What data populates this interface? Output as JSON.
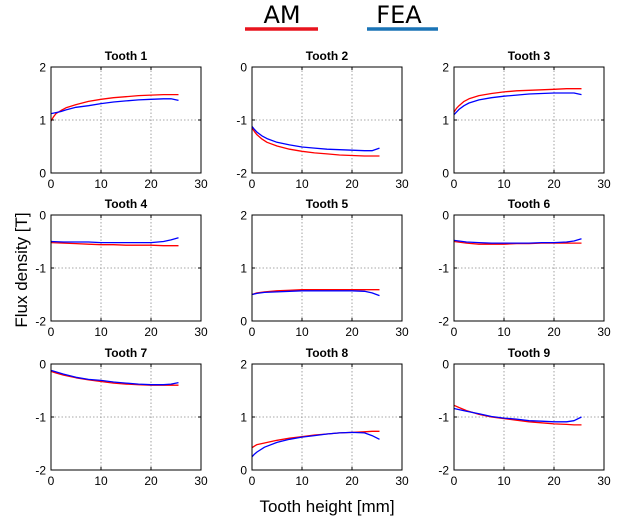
{
  "figure": {
    "ylabel": "Flux density [T]",
    "xlabel": "Tooth height [mm]"
  },
  "legend": [
    {
      "name": "AM",
      "color": "#e8141e"
    },
    {
      "name": "FEA",
      "color": "#1a74b6"
    }
  ],
  "chart_data": [
    {
      "type": "line",
      "title": "Tooth 1",
      "xlim": [
        0,
        30
      ],
      "ylim": [
        0,
        2
      ],
      "xticks": [
        "0",
        "10",
        "20",
        "30"
      ],
      "yticks": [
        "0",
        "1",
        "2"
      ],
      "x": [
        0,
        0.5,
        1,
        2,
        3,
        5,
        7.5,
        10,
        12.5,
        15,
        17.5,
        20,
        22.5,
        24,
        25.5
      ],
      "series": [
        {
          "name": "AM",
          "color": "#ff0000",
          "y": [
            0.98,
            1.06,
            1.12,
            1.18,
            1.23,
            1.29,
            1.35,
            1.39,
            1.42,
            1.44,
            1.46,
            1.47,
            1.48,
            1.48,
            1.48
          ]
        },
        {
          "name": "FEA",
          "color": "#0000ff",
          "y": [
            1.12,
            1.13,
            1.14,
            1.16,
            1.19,
            1.24,
            1.27,
            1.31,
            1.34,
            1.36,
            1.38,
            1.39,
            1.4,
            1.4,
            1.37
          ]
        }
      ]
    },
    {
      "type": "line",
      "title": "Tooth 2",
      "xlim": [
        0,
        30
      ],
      "ylim": [
        -2,
        0
      ],
      "xticks": [
        "0",
        "10",
        "20",
        "30"
      ],
      "yticks": [
        "-2",
        "-1",
        "0"
      ],
      "x": [
        0,
        0.5,
        1,
        2,
        3,
        5,
        7.5,
        10,
        12.5,
        15,
        17.5,
        20,
        22.5,
        24,
        25.5
      ],
      "series": [
        {
          "name": "AM",
          "color": "#ff0000",
          "y": [
            -1.15,
            -1.22,
            -1.28,
            -1.36,
            -1.42,
            -1.49,
            -1.55,
            -1.59,
            -1.62,
            -1.64,
            -1.66,
            -1.67,
            -1.68,
            -1.68,
            -1.68
          ]
        },
        {
          "name": "FEA",
          "color": "#0000ff",
          "y": [
            -1.12,
            -1.18,
            -1.23,
            -1.3,
            -1.35,
            -1.42,
            -1.47,
            -1.51,
            -1.53,
            -1.55,
            -1.56,
            -1.57,
            -1.58,
            -1.58,
            -1.53
          ]
        }
      ]
    },
    {
      "type": "line",
      "title": "Tooth 3",
      "xlim": [
        0,
        30
      ],
      "ylim": [
        0,
        2
      ],
      "xticks": [
        "0",
        "10",
        "20",
        "30"
      ],
      "yticks": [
        "0",
        "1",
        "2"
      ],
      "x": [
        0,
        0.5,
        1,
        2,
        3,
        5,
        7.5,
        10,
        12.5,
        15,
        17.5,
        20,
        22.5,
        24,
        25.5
      ],
      "series": [
        {
          "name": "AM",
          "color": "#ff0000",
          "y": [
            1.15,
            1.22,
            1.27,
            1.35,
            1.4,
            1.46,
            1.5,
            1.53,
            1.55,
            1.56,
            1.57,
            1.58,
            1.59,
            1.59,
            1.59
          ]
        },
        {
          "name": "FEA",
          "color": "#0000ff",
          "y": [
            1.1,
            1.15,
            1.2,
            1.27,
            1.32,
            1.38,
            1.42,
            1.45,
            1.47,
            1.49,
            1.5,
            1.51,
            1.51,
            1.51,
            1.48
          ]
        }
      ]
    },
    {
      "type": "line",
      "title": "Tooth 4",
      "xlim": [
        0,
        30
      ],
      "ylim": [
        -2,
        0
      ],
      "xticks": [
        "0",
        "10",
        "20",
        "30"
      ],
      "yticks": [
        "-2",
        "-1",
        "0"
      ],
      "x": [
        0,
        2.5,
        5,
        7.5,
        10,
        12.5,
        15,
        17.5,
        20,
        22.5,
        24,
        25.5
      ],
      "series": [
        {
          "name": "AM",
          "color": "#ff0000",
          "y": [
            -0.52,
            -0.53,
            -0.54,
            -0.55,
            -0.56,
            -0.56,
            -0.57,
            -0.57,
            -0.57,
            -0.58,
            -0.58,
            -0.58
          ]
        },
        {
          "name": "FEA",
          "color": "#0000ff",
          "y": [
            -0.5,
            -0.51,
            -0.51,
            -0.51,
            -0.52,
            -0.52,
            -0.52,
            -0.52,
            -0.52,
            -0.5,
            -0.47,
            -0.43
          ]
        }
      ]
    },
    {
      "type": "line",
      "title": "Tooth 5",
      "xlim": [
        0,
        30
      ],
      "ylim": [
        0,
        2
      ],
      "xticks": [
        "0",
        "10",
        "20",
        "30"
      ],
      "yticks": [
        "0",
        "1",
        "2"
      ],
      "x": [
        0,
        1,
        2.5,
        5,
        7.5,
        10,
        12.5,
        15,
        17.5,
        20,
        22.5,
        24,
        25.5
      ],
      "series": [
        {
          "name": "AM",
          "color": "#ff0000",
          "y": [
            0.5,
            0.53,
            0.55,
            0.57,
            0.58,
            0.59,
            0.59,
            0.59,
            0.59,
            0.59,
            0.59,
            0.59,
            0.59
          ]
        },
        {
          "name": "FEA",
          "color": "#0000ff",
          "y": [
            0.5,
            0.52,
            0.54,
            0.55,
            0.56,
            0.57,
            0.57,
            0.57,
            0.57,
            0.57,
            0.56,
            0.53,
            0.48
          ]
        }
      ]
    },
    {
      "type": "line",
      "title": "Tooth 6",
      "xlim": [
        0,
        30
      ],
      "ylim": [
        -2,
        0
      ],
      "xticks": [
        "0",
        "10",
        "20",
        "30"
      ],
      "yticks": [
        "-2",
        "-1",
        "0"
      ],
      "x": [
        0,
        2.5,
        5,
        7.5,
        10,
        12.5,
        15,
        17.5,
        20,
        22.5,
        24,
        25.5
      ],
      "series": [
        {
          "name": "AM",
          "color": "#ff0000",
          "y": [
            -0.5,
            -0.53,
            -0.55,
            -0.55,
            -0.55,
            -0.54,
            -0.54,
            -0.53,
            -0.53,
            -0.53,
            -0.53,
            -0.53
          ]
        },
        {
          "name": "FEA",
          "color": "#0000ff",
          "y": [
            -0.48,
            -0.51,
            -0.52,
            -0.53,
            -0.53,
            -0.53,
            -0.53,
            -0.52,
            -0.52,
            -0.51,
            -0.49,
            -0.45
          ]
        }
      ]
    },
    {
      "type": "line",
      "title": "Tooth 7",
      "xlim": [
        0,
        30
      ],
      "ylim": [
        -2,
        0
      ],
      "xticks": [
        "0",
        "10",
        "20",
        "30"
      ],
      "yticks": [
        "-2",
        "-1",
        "0"
      ],
      "x": [
        0,
        1,
        2.5,
        5,
        7.5,
        10,
        12.5,
        15,
        17.5,
        20,
        22.5,
        24,
        25.5
      ],
      "series": [
        {
          "name": "AM",
          "color": "#ff0000",
          "y": [
            -0.14,
            -0.17,
            -0.21,
            -0.26,
            -0.3,
            -0.33,
            -0.36,
            -0.38,
            -0.39,
            -0.4,
            -0.4,
            -0.4,
            -0.4
          ]
        },
        {
          "name": "FEA",
          "color": "#0000ff",
          "y": [
            -0.12,
            -0.15,
            -0.19,
            -0.25,
            -0.29,
            -0.31,
            -0.34,
            -0.36,
            -0.38,
            -0.39,
            -0.39,
            -0.38,
            -0.35
          ]
        }
      ]
    },
    {
      "type": "line",
      "title": "Tooth 8",
      "xlim": [
        0,
        30
      ],
      "ylim": [
        0,
        2
      ],
      "xticks": [
        "0",
        "10",
        "20",
        "30"
      ],
      "yticks": [
        "0",
        "1",
        "2"
      ],
      "x": [
        0,
        0.5,
        1,
        2.5,
        5,
        7.5,
        10,
        12.5,
        15,
        17.5,
        20,
        22.5,
        24,
        25.5
      ],
      "series": [
        {
          "name": "AM",
          "color": "#ff0000",
          "y": [
            0.42,
            0.45,
            0.48,
            0.51,
            0.56,
            0.6,
            0.63,
            0.66,
            0.68,
            0.7,
            0.71,
            0.72,
            0.73,
            0.73
          ]
        },
        {
          "name": "FEA",
          "color": "#0000ff",
          "y": [
            0.25,
            0.3,
            0.34,
            0.43,
            0.52,
            0.58,
            0.62,
            0.65,
            0.68,
            0.7,
            0.71,
            0.7,
            0.65,
            0.58
          ]
        }
      ]
    },
    {
      "type": "line",
      "title": "Tooth 9",
      "xlim": [
        0,
        30
      ],
      "ylim": [
        -2,
        0
      ],
      "xticks": [
        "0",
        "10",
        "20",
        "30"
      ],
      "yticks": [
        "-2",
        "-1",
        "0"
      ],
      "x": [
        0,
        1,
        2.5,
        5,
        7.5,
        10,
        12.5,
        15,
        17.5,
        20,
        22.5,
        24,
        25.5
      ],
      "series": [
        {
          "name": "AM",
          "color": "#ff0000",
          "y": [
            -0.78,
            -0.82,
            -0.88,
            -0.95,
            -1.0,
            -1.03,
            -1.06,
            -1.09,
            -1.11,
            -1.13,
            -1.14,
            -1.15,
            -1.15
          ]
        },
        {
          "name": "FEA",
          "color": "#0000ff",
          "y": [
            -0.84,
            -0.86,
            -0.89,
            -0.94,
            -0.99,
            -1.02,
            -1.04,
            -1.07,
            -1.08,
            -1.09,
            -1.09,
            -1.07,
            -1.0
          ]
        }
      ]
    }
  ]
}
